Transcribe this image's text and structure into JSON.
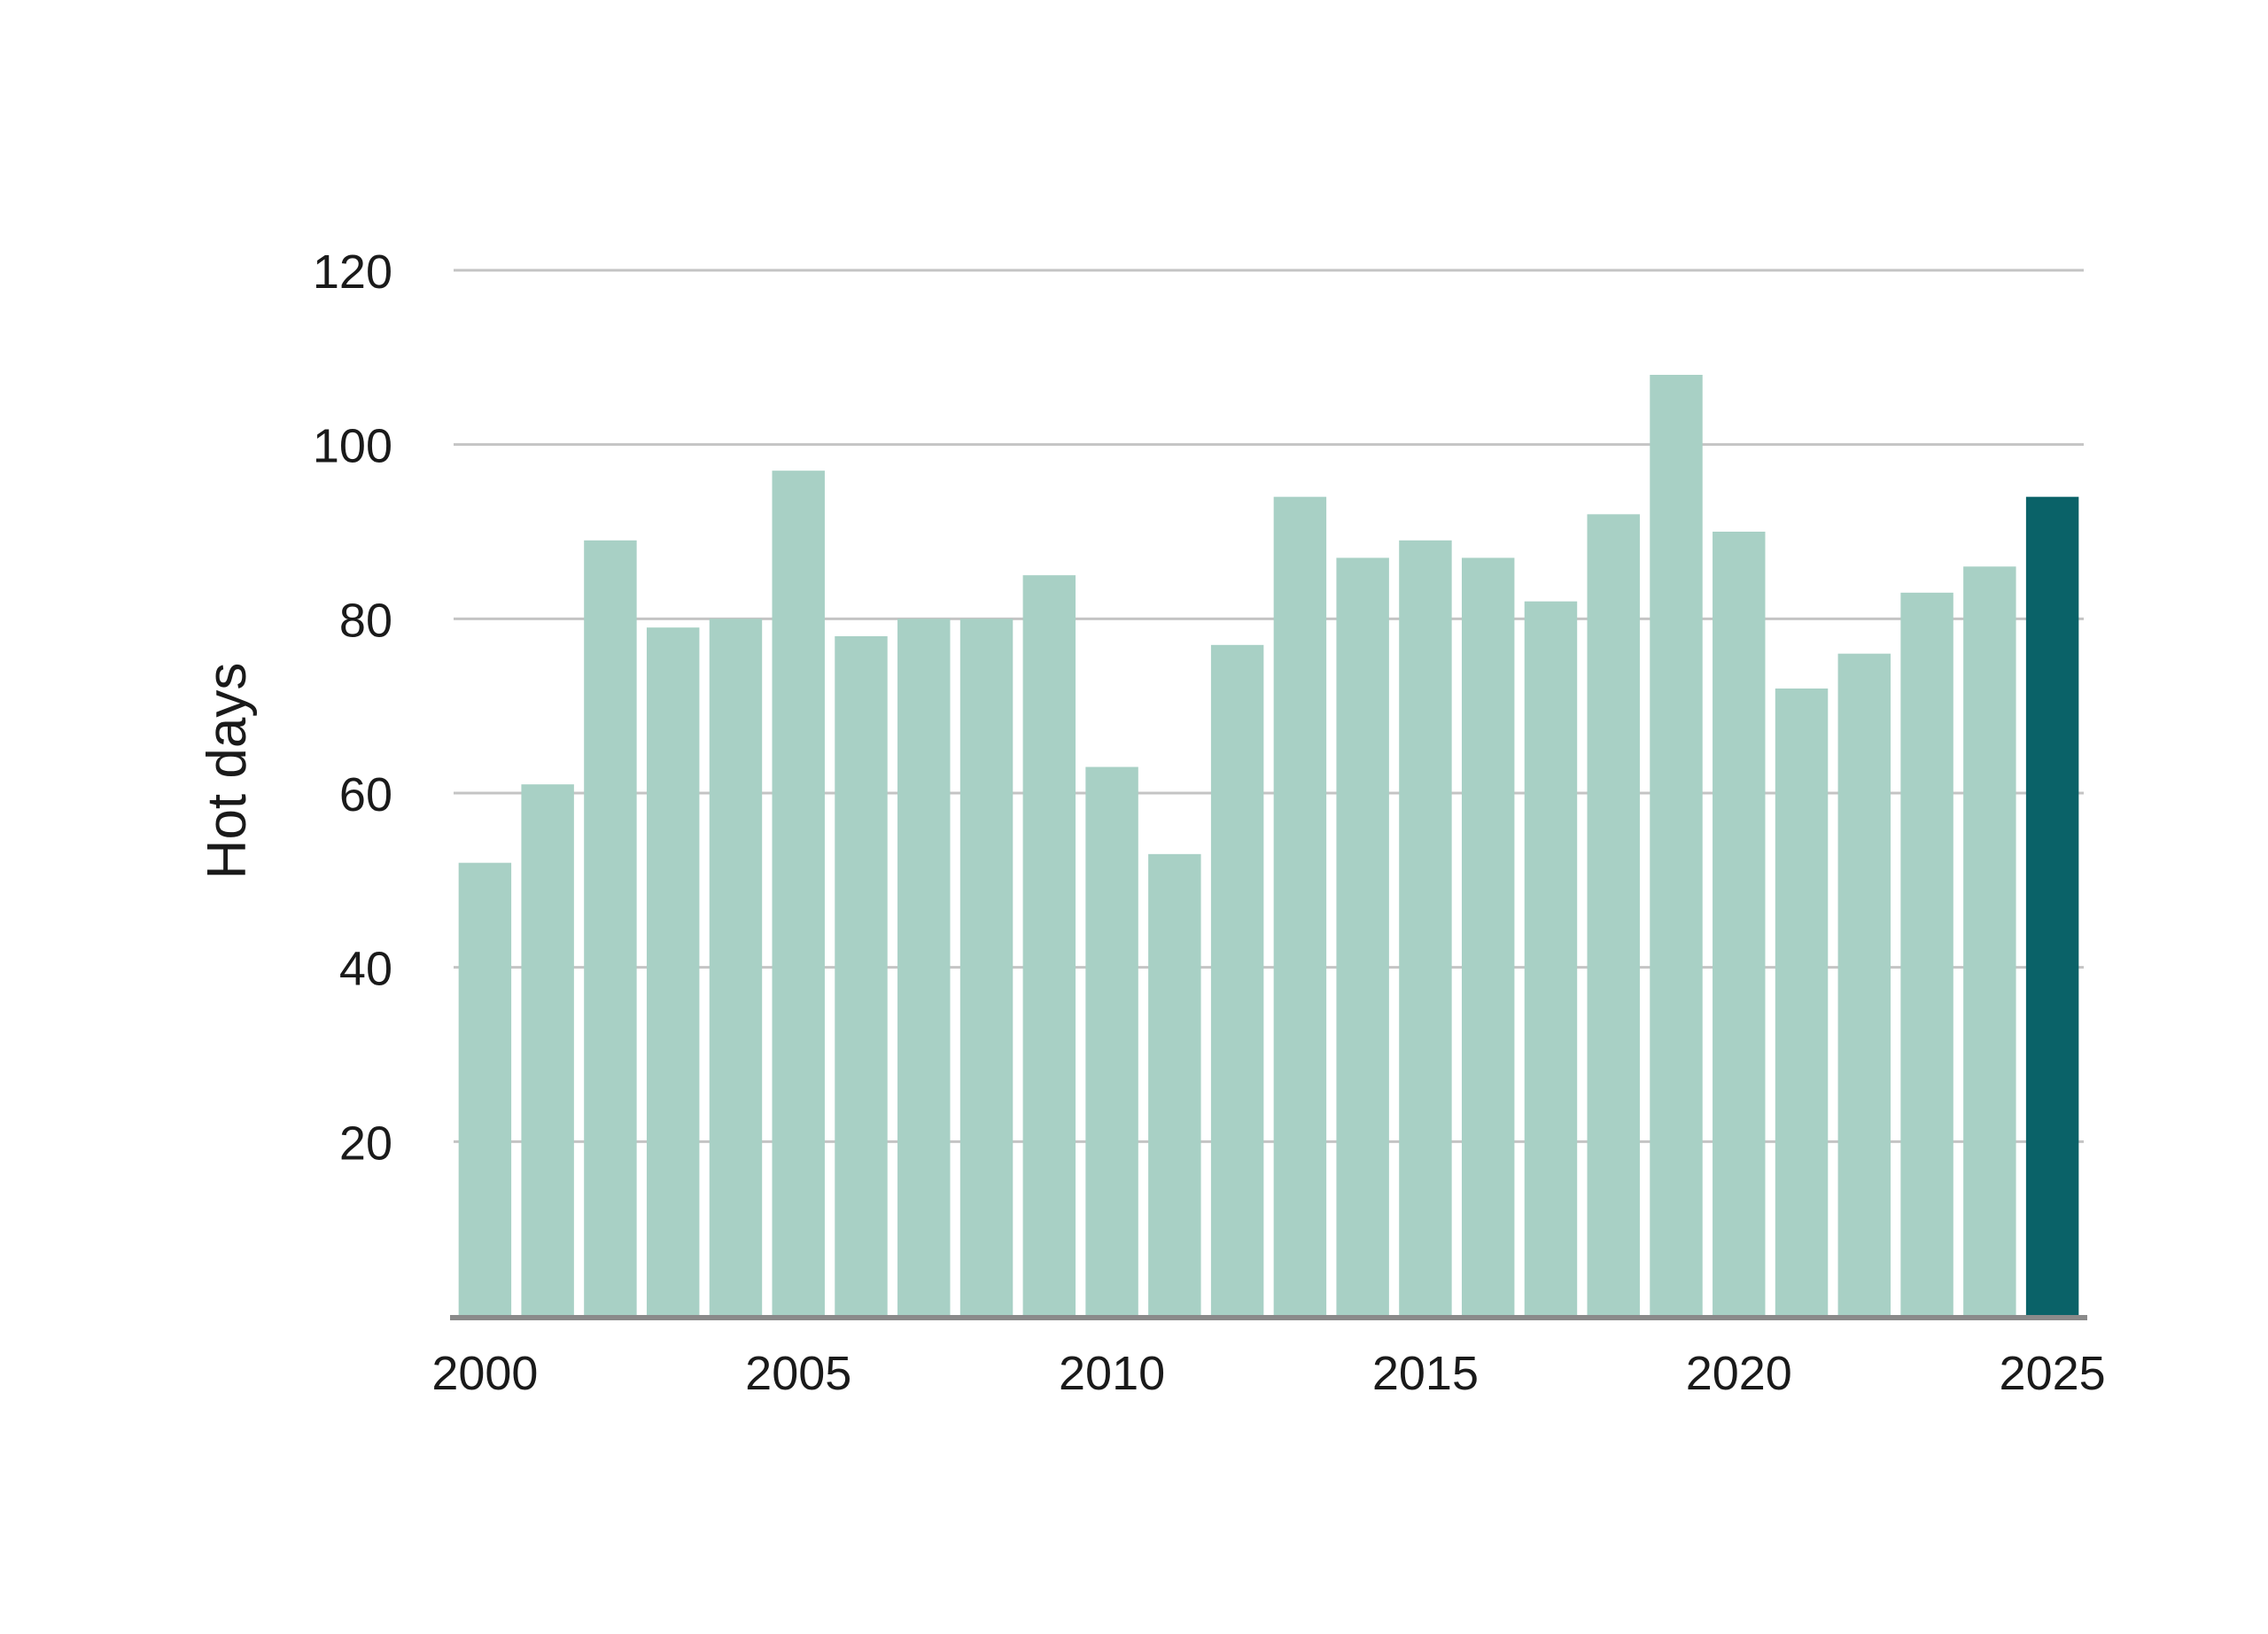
{
  "chart_data": {
    "type": "bar",
    "ylabel": "Hot days",
    "xlabel": "",
    "title": "",
    "ylim": [
      0,
      120
    ],
    "yticks": [
      20,
      40,
      60,
      80,
      100,
      120
    ],
    "xticks": [
      2000,
      2005,
      2010,
      2015,
      2020,
      2025
    ],
    "grid": true,
    "categories": [
      2000,
      2001,
      2002,
      2003,
      2004,
      2005,
      2006,
      2007,
      2008,
      2009,
      2010,
      2011,
      2012,
      2013,
      2014,
      2015,
      2016,
      2017,
      2018,
      2019,
      2020,
      2021,
      2022,
      2023,
      2024,
      2025
    ],
    "values": [
      52,
      61,
      89,
      79,
      80,
      97,
      78,
      80,
      80,
      85,
      63,
      53,
      77,
      94,
      87,
      89,
      87,
      82,
      92,
      108,
      90,
      72,
      76,
      83,
      86,
      94
    ],
    "highlight_index": 25,
    "colors": {
      "bar": "#a8d0c5",
      "highlight": "#0a6268",
      "grid": "#c4c4c4",
      "axis": "#8a8a8a"
    }
  }
}
